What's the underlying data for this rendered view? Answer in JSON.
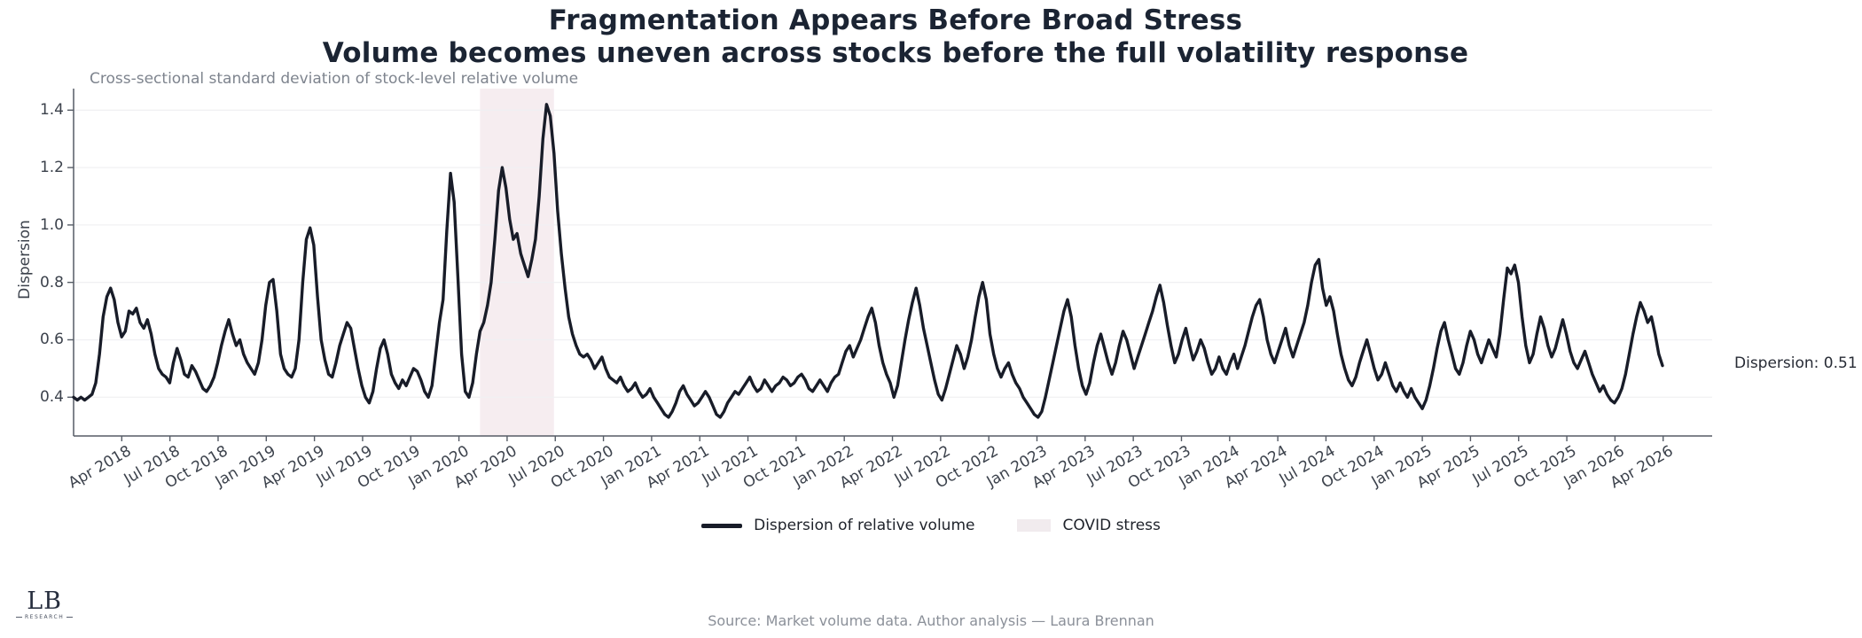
{
  "colors": {
    "line": "#181c28",
    "band": "#f6edf0",
    "legend_patch": "#f1ebee",
    "title": "#1b2433",
    "grid": "#f0f0f3",
    "axis": "#565c66",
    "muted_text": "#7e848e"
  },
  "legend": {
    "line_label": "Dispersion of relative volume",
    "band_label": "COVID stress"
  },
  "footer": {
    "logo_text": "LB",
    "logo_subtext": "RESEARCH",
    "source": "Source: Market volume data. Author analysis — Laura Brennan"
  },
  "chart_data": {
    "type": "line",
    "title_line1": "Fragmentation Appears Before Broad Stress",
    "title_line2": "Volume becomes uneven across stocks before the full volatility response",
    "subtitle": "Cross-sectional standard deviation of stock-level relative volume",
    "ylabel": "Dispersion",
    "grid": "horizontal-only",
    "legend_position": "bottom-center",
    "last_value_annotation": "Dispersion: 0.51",
    "last_value": 0.51,
    "ylim": [
      0.265,
      1.475
    ],
    "y_ticks": [
      "0.4",
      "0.6",
      "0.8",
      "1.0",
      "1.2",
      "1.4"
    ],
    "x_tick_labels": [
      "Apr 2018",
      "Jul 2018",
      "Oct 2018",
      "Jan 2019",
      "Apr 2019",
      "Jul 2019",
      "Oct 2019",
      "Jan 2020",
      "Apr 2020",
      "Jul 2020",
      "Oct 2020",
      "Jan 2021",
      "Apr 2021",
      "Jul 2021",
      "Oct 2021",
      "Jan 2022",
      "Apr 2022",
      "Jul 2022",
      "Oct 2022",
      "Jan 2023",
      "Apr 2023",
      "Jul 2023",
      "Oct 2023",
      "Jan 2024",
      "Apr 2024",
      "Jul 2024",
      "Oct 2024",
      "Jan 2025",
      "Apr 2025",
      "Jul 2025",
      "Oct 2025",
      "Jan 2026",
      "Apr 2026"
    ],
    "covid_band": {
      "label": "COVID stress",
      "start_index": 110,
      "end_index": 130
    },
    "series": [
      {
        "name": "Dispersion of relative volume",
        "frequency": "weekly",
        "start": "2018-01",
        "end": "2026-04",
        "values": [
          0.4,
          0.39,
          0.4,
          0.39,
          0.4,
          0.41,
          0.45,
          0.55,
          0.68,
          0.75,
          0.78,
          0.74,
          0.66,
          0.61,
          0.63,
          0.7,
          0.69,
          0.71,
          0.66,
          0.64,
          0.67,
          0.62,
          0.55,
          0.5,
          0.48,
          0.47,
          0.45,
          0.52,
          0.57,
          0.53,
          0.48,
          0.47,
          0.51,
          0.49,
          0.46,
          0.43,
          0.42,
          0.44,
          0.47,
          0.52,
          0.58,
          0.63,
          0.67,
          0.62,
          0.58,
          0.6,
          0.55,
          0.52,
          0.5,
          0.48,
          0.52,
          0.6,
          0.72,
          0.8,
          0.81,
          0.7,
          0.55,
          0.5,
          0.48,
          0.47,
          0.5,
          0.6,
          0.8,
          0.95,
          0.99,
          0.93,
          0.75,
          0.6,
          0.53,
          0.48,
          0.47,
          0.52,
          0.58,
          0.62,
          0.66,
          0.64,
          0.57,
          0.5,
          0.44,
          0.4,
          0.38,
          0.42,
          0.5,
          0.57,
          0.6,
          0.55,
          0.48,
          0.45,
          0.43,
          0.46,
          0.44,
          0.47,
          0.5,
          0.49,
          0.46,
          0.42,
          0.4,
          0.44,
          0.55,
          0.66,
          0.74,
          0.98,
          1.18,
          1.08,
          0.82,
          0.55,
          0.42,
          0.4,
          0.45,
          0.55,
          0.63,
          0.66,
          0.72,
          0.8,
          0.95,
          1.12,
          1.2,
          1.13,
          1.02,
          0.95,
          0.97,
          0.9,
          0.86,
          0.82,
          0.88,
          0.95,
          1.1,
          1.3,
          1.42,
          1.38,
          1.25,
          1.05,
          0.9,
          0.78,
          0.68,
          0.62,
          0.58,
          0.55,
          0.54,
          0.55,
          0.53,
          0.5,
          0.52,
          0.54,
          0.5,
          0.47,
          0.46,
          0.45,
          0.47,
          0.44,
          0.42,
          0.43,
          0.45,
          0.42,
          0.4,
          0.41,
          0.43,
          0.4,
          0.38,
          0.36,
          0.34,
          0.33,
          0.35,
          0.38,
          0.42,
          0.44,
          0.41,
          0.39,
          0.37,
          0.38,
          0.4,
          0.42,
          0.4,
          0.37,
          0.34,
          0.33,
          0.35,
          0.38,
          0.4,
          0.42,
          0.41,
          0.43,
          0.45,
          0.47,
          0.44,
          0.42,
          0.43,
          0.46,
          0.44,
          0.42,
          0.44,
          0.45,
          0.47,
          0.46,
          0.44,
          0.45,
          0.47,
          0.48,
          0.46,
          0.43,
          0.42,
          0.44,
          0.46,
          0.44,
          0.42,
          0.45,
          0.47,
          0.48,
          0.52,
          0.56,
          0.58,
          0.54,
          0.57,
          0.6,
          0.64,
          0.68,
          0.71,
          0.66,
          0.58,
          0.52,
          0.48,
          0.45,
          0.4,
          0.44,
          0.52,
          0.6,
          0.67,
          0.73,
          0.78,
          0.72,
          0.64,
          0.58,
          0.52,
          0.46,
          0.41,
          0.39,
          0.43,
          0.48,
          0.53,
          0.58,
          0.55,
          0.5,
          0.54,
          0.6,
          0.68,
          0.75,
          0.8,
          0.74,
          0.62,
          0.55,
          0.5,
          0.47,
          0.5,
          0.52,
          0.48,
          0.45,
          0.43,
          0.4,
          0.38,
          0.36,
          0.34,
          0.33,
          0.35,
          0.4,
          0.46,
          0.52,
          0.58,
          0.64,
          0.7,
          0.74,
          0.68,
          0.58,
          0.5,
          0.44,
          0.41,
          0.45,
          0.52,
          0.58,
          0.62,
          0.57,
          0.52,
          0.48,
          0.52,
          0.58,
          0.63,
          0.6,
          0.55,
          0.5,
          0.54,
          0.58,
          0.62,
          0.66,
          0.7,
          0.75,
          0.79,
          0.73,
          0.65,
          0.58,
          0.52,
          0.55,
          0.6,
          0.64,
          0.58,
          0.53,
          0.56,
          0.6,
          0.57,
          0.52,
          0.48,
          0.5,
          0.54,
          0.5,
          0.48,
          0.52,
          0.55,
          0.5,
          0.54,
          0.58,
          0.63,
          0.68,
          0.72,
          0.74,
          0.68,
          0.6,
          0.55,
          0.52,
          0.56,
          0.6,
          0.64,
          0.58,
          0.54,
          0.58,
          0.62,
          0.66,
          0.72,
          0.8,
          0.86,
          0.88,
          0.78,
          0.72,
          0.75,
          0.7,
          0.62,
          0.55,
          0.5,
          0.46,
          0.44,
          0.47,
          0.52,
          0.56,
          0.6,
          0.55,
          0.5,
          0.46,
          0.48,
          0.52,
          0.48,
          0.44,
          0.42,
          0.45,
          0.42,
          0.4,
          0.43,
          0.4,
          0.38,
          0.36,
          0.39,
          0.44,
          0.5,
          0.57,
          0.63,
          0.66,
          0.6,
          0.55,
          0.5,
          0.48,
          0.52,
          0.58,
          0.63,
          0.6,
          0.55,
          0.52,
          0.56,
          0.6,
          0.57,
          0.54,
          0.62,
          0.74,
          0.85,
          0.83,
          0.86,
          0.8,
          0.68,
          0.58,
          0.52,
          0.55,
          0.62,
          0.68,
          0.64,
          0.58,
          0.54,
          0.57,
          0.62,
          0.67,
          0.62,
          0.56,
          0.52,
          0.5,
          0.53,
          0.56,
          0.52,
          0.48,
          0.45,
          0.42,
          0.44,
          0.41,
          0.39,
          0.38,
          0.4,
          0.43,
          0.48,
          0.55,
          0.62,
          0.68,
          0.73,
          0.7,
          0.66,
          0.68,
          0.62,
          0.55,
          0.51
        ]
      }
    ]
  }
}
